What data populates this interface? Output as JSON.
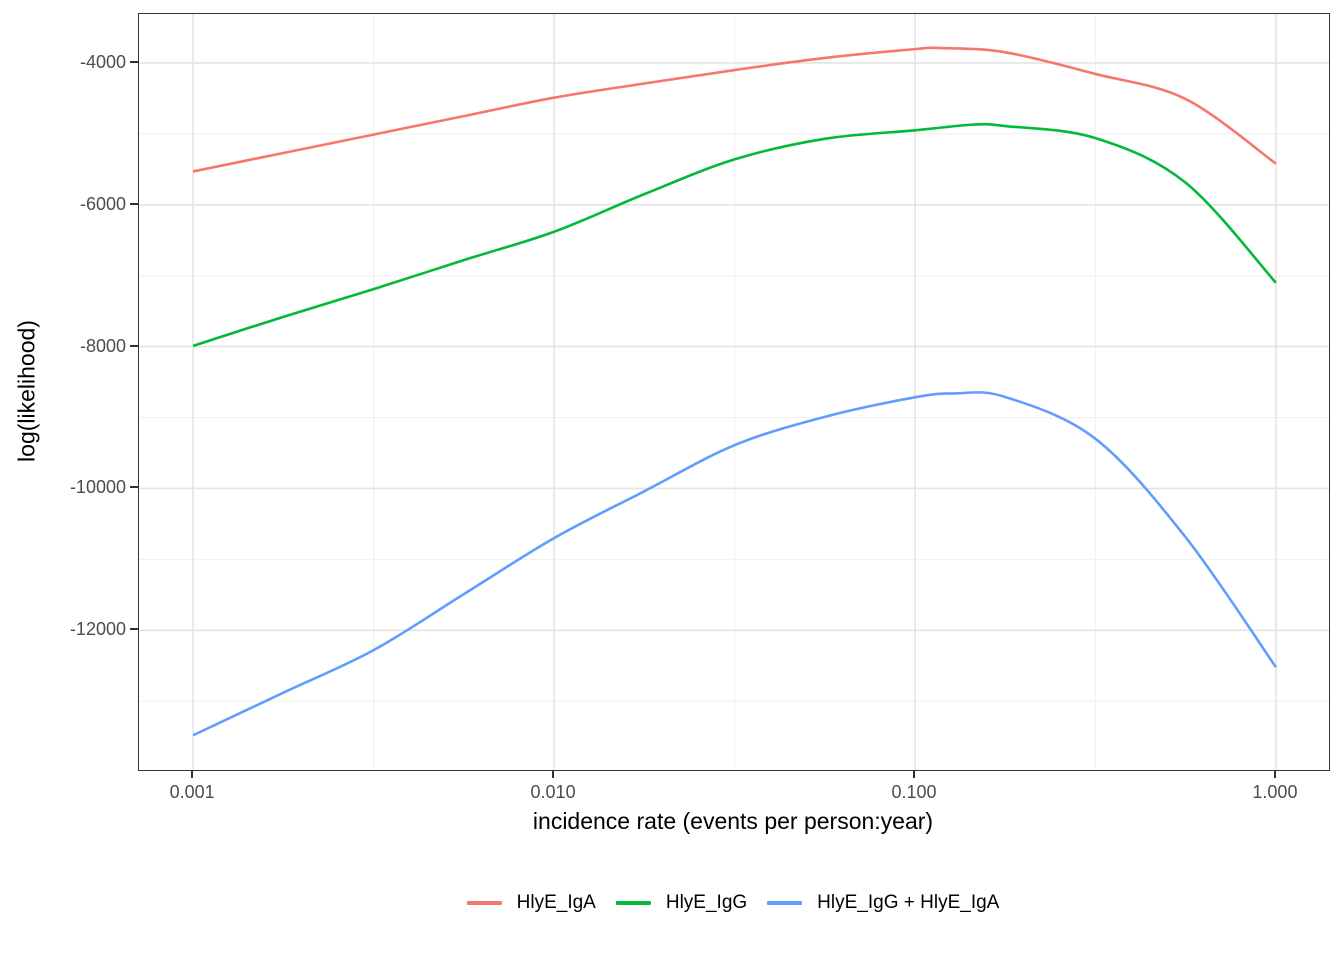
{
  "figure": {
    "background": "#FFFFFF",
    "panel_border_color": "#333333",
    "grid_major_color": "#E4E4E4",
    "grid_minor_color": "#F0F0F0",
    "tick_color": "#333333",
    "tick_label_color": "#4D4D4D",
    "axis_title_color": "#000000"
  },
  "chart_data": {
    "type": "line",
    "title": "",
    "xlabel": "incidence rate (events per person:year)",
    "ylabel": "log(likelihood)",
    "x_scale": "log10",
    "grid": "major+minor",
    "legend_position": "bottom",
    "xlim_log10": [
      -3.15,
      0.147
    ],
    "ylim": [
      -13970,
      -3310
    ],
    "x_ticks": [
      {
        "log10": -3,
        "value": 0.001,
        "label": "0.001"
      },
      {
        "log10": -2,
        "value": 0.01,
        "label": "0.010"
      },
      {
        "log10": -1,
        "value": 0.1,
        "label": "0.100"
      },
      {
        "log10": 0,
        "value": 1.0,
        "label": "1.000"
      }
    ],
    "x_minor_log10": [
      -2.5,
      -1.5,
      -0.5
    ],
    "y_ticks": [
      {
        "value": -4000,
        "label": "-4000"
      },
      {
        "value": -6000,
        "label": "-6000"
      },
      {
        "value": -8000,
        "label": "-8000"
      },
      {
        "value": -10000,
        "label": "-10000"
      },
      {
        "value": -12000,
        "label": "-12000"
      }
    ],
    "y_minor": [
      -5000,
      -7000,
      -9000,
      -11000,
      -13000
    ],
    "series": [
      {
        "name": "HlyE_IgA",
        "color": "#F8766D",
        "points_log10x_y": [
          [
            -3.0,
            -5530
          ],
          [
            -2.75,
            -5270
          ],
          [
            -2.5,
            -5010
          ],
          [
            -2.25,
            -4750
          ],
          [
            -2.0,
            -4490
          ],
          [
            -1.75,
            -4290
          ],
          [
            -1.5,
            -4100
          ],
          [
            -1.25,
            -3930
          ],
          [
            -1.0,
            -3805
          ],
          [
            -0.93,
            -3790
          ],
          [
            -0.75,
            -3850
          ],
          [
            -0.5,
            -4155
          ],
          [
            -0.25,
            -4510
          ],
          [
            0.0,
            -5420
          ]
        ]
      },
      {
        "name": "HlyE_IgG",
        "color": "#00BA38",
        "points_log10x_y": [
          [
            -3.0,
            -7990
          ],
          [
            -2.75,
            -7580
          ],
          [
            -2.5,
            -7190
          ],
          [
            -2.25,
            -6780
          ],
          [
            -2.0,
            -6380
          ],
          [
            -1.75,
            -5850
          ],
          [
            -1.5,
            -5360
          ],
          [
            -1.25,
            -5070
          ],
          [
            -1.0,
            -4950
          ],
          [
            -0.84,
            -4870
          ],
          [
            -0.75,
            -4890
          ],
          [
            -0.5,
            -5060
          ],
          [
            -0.25,
            -5690
          ],
          [
            0.0,
            -7100
          ]
        ]
      },
      {
        "name": "HlyE_IgG + HlyE_IgA",
        "color": "#619CFF",
        "points_log10x_y": [
          [
            -3.0,
            -13480
          ],
          [
            -2.75,
            -12880
          ],
          [
            -2.5,
            -12280
          ],
          [
            -2.25,
            -11490
          ],
          [
            -2.0,
            -10700
          ],
          [
            -1.75,
            -10040
          ],
          [
            -1.5,
            -9390
          ],
          [
            -1.25,
            -8990
          ],
          [
            -1.0,
            -8715
          ],
          [
            -0.89,
            -8660
          ],
          [
            -0.75,
            -8710
          ],
          [
            -0.5,
            -9300
          ],
          [
            -0.25,
            -10690
          ],
          [
            0.0,
            -12520
          ]
        ]
      }
    ]
  }
}
